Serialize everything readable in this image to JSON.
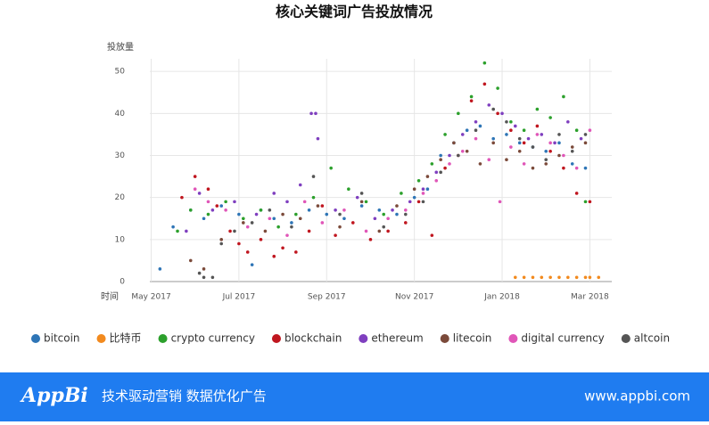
{
  "chart_data": {
    "type": "scatter",
    "title": "核心关键词广告投放情况",
    "y_label": "投放量",
    "x_label": "时间",
    "xlim": [
      -0.6,
      10.5
    ],
    "xticks": [
      {
        "value": 0,
        "label": "May 2017"
      },
      {
        "value": 2,
        "label": "Jul 2017"
      },
      {
        "value": 4,
        "label": "Sep 2017"
      },
      {
        "value": 6,
        "label": "Nov 2017"
      },
      {
        "value": 8,
        "label": "Jan 2018"
      },
      {
        "value": 10,
        "label": "Mar 2018"
      }
    ],
    "ylim": [
      0,
      53
    ],
    "yticks": [
      0,
      10,
      20,
      30,
      40,
      50
    ],
    "grid": true,
    "legend": "bottom",
    "series": [
      {
        "name": "bitcoin",
        "color": "#2e75b6",
        "x": [
          0.2,
          0.5,
          0.9,
          1.2,
          1.6,
          2.0,
          2.3,
          2.5,
          2.8,
          3.2,
          3.6,
          4.0,
          4.4,
          4.8,
          5.2,
          5.6,
          6.0,
          6.3,
          6.6,
          6.9,
          7.2,
          7.5,
          7.8,
          8.1,
          8.4,
          8.7,
          9.0,
          9.3,
          9.6,
          9.9
        ],
        "values": [
          3,
          13,
          17,
          15,
          18,
          16,
          4,
          17,
          15,
          14,
          17,
          16,
          15,
          18,
          17,
          16,
          20,
          22,
          30,
          33,
          36,
          37,
          34,
          35,
          33,
          32,
          31,
          33,
          28,
          27
        ]
      },
      {
        "name": "比特币",
        "color": "#f28a1e",
        "x": [
          8.3,
          8.5,
          8.7,
          8.9,
          9.1,
          9.3,
          9.5,
          9.7,
          9.9,
          10.0,
          10.2
        ],
        "values": [
          1,
          1,
          1,
          1,
          1,
          1,
          1,
          1,
          1,
          1,
          1
        ]
      },
      {
        "name": "crypto currency",
        "color": "#2ca02c",
        "x": [
          0.6,
          0.9,
          1.3,
          1.7,
          2.1,
          2.5,
          2.9,
          3.3,
          3.7,
          4.1,
          4.5,
          4.9,
          5.3,
          5.7,
          6.1,
          6.4,
          6.7,
          7.0,
          7.3,
          7.6,
          7.9,
          8.2,
          8.5,
          8.8,
          9.1,
          9.4,
          9.7,
          9.9
        ],
        "values": [
          12,
          17,
          16,
          19,
          15,
          17,
          13,
          16,
          20,
          27,
          22,
          19,
          16,
          21,
          24,
          28,
          35,
          40,
          44,
          52,
          46,
          38,
          36,
          41,
          39,
          44,
          36,
          19
        ]
      },
      {
        "name": "blockchain",
        "color": "#c0161f",
        "x": [
          0.7,
          1.0,
          1.3,
          1.5,
          1.8,
          2.0,
          2.2,
          2.5,
          2.8,
          3.0,
          3.3,
          3.6,
          3.9,
          4.2,
          4.6,
          5.0,
          5.4,
          5.8,
          6.1,
          6.4,
          6.7,
          7.0,
          7.3,
          7.6,
          7.9,
          8.2,
          8.5,
          8.8,
          9.1,
          9.4,
          9.7,
          10.0
        ],
        "values": [
          20,
          25,
          22,
          18,
          12,
          9,
          7,
          10,
          6,
          8,
          7,
          12,
          18,
          11,
          14,
          10,
          12,
          14,
          19,
          11,
          27,
          30,
          43,
          47,
          40,
          36,
          33,
          37,
          31,
          27,
          21,
          19
        ]
      },
      {
        "name": "ethereum",
        "color": "#7f3fbf",
        "x": [
          0.8,
          1.1,
          1.4,
          1.9,
          2.4,
          2.8,
          3.1,
          3.4,
          3.65,
          3.75,
          3.8,
          4.2,
          4.7,
          5.1,
          5.5,
          5.9,
          6.2,
          6.5,
          6.8,
          7.1,
          7.4,
          7.7,
          8.0,
          8.3,
          8.6,
          8.9,
          9.2,
          9.5,
          9.8
        ],
        "values": [
          12,
          21,
          17,
          19,
          16,
          21,
          19,
          23,
          40,
          40,
          34,
          17,
          20,
          15,
          17,
          19,
          22,
          26,
          30,
          35,
          38,
          42,
          40,
          37,
          34,
          35,
          33,
          38,
          34
        ]
      },
      {
        "name": "litecoin",
        "color": "#7b4a3a",
        "x": [
          0.9,
          1.2,
          1.6,
          2.1,
          2.6,
          3.0,
          3.4,
          3.8,
          4.3,
          4.8,
          5.2,
          5.6,
          6.0,
          6.3,
          6.6,
          6.9,
          7.2,
          7.5,
          7.8,
          8.1,
          8.4,
          8.7,
          9.0,
          9.3,
          9.6,
          9.9
        ],
        "values": [
          5,
          3,
          10,
          14,
          12,
          16,
          15,
          18,
          13,
          19,
          12,
          18,
          22,
          25,
          29,
          33,
          31,
          28,
          33,
          29,
          31,
          27,
          28,
          30,
          32,
          33
        ]
      },
      {
        "name": "digital currency",
        "color": "#e056b8",
        "x": [
          1.0,
          1.3,
          1.7,
          2.2,
          2.7,
          3.1,
          3.5,
          3.9,
          4.4,
          4.9,
          5.4,
          5.8,
          6.2,
          6.5,
          6.8,
          7.1,
          7.4,
          7.7,
          7.95,
          8.2,
          8.5,
          8.8,
          9.1,
          9.4,
          9.7,
          10.0
        ],
        "values": [
          22,
          19,
          17,
          13,
          15,
          11,
          19,
          14,
          17,
          12,
          15,
          17,
          21,
          24,
          28,
          31,
          34,
          29,
          19,
          32,
          28,
          35,
          33,
          30,
          27,
          36
        ]
      },
      {
        "name": "altcoin",
        "color": "#555555",
        "x": [
          1.1,
          1.2,
          1.4,
          1.6,
          1.9,
          2.3,
          2.7,
          3.2,
          3.7,
          4.3,
          4.8,
          5.3,
          5.8,
          6.2,
          6.6,
          7.0,
          7.4,
          7.8,
          8.1,
          8.4,
          8.7,
          9.0,
          9.3,
          9.6,
          9.9
        ],
        "values": [
          2,
          1,
          1,
          9,
          12,
          14,
          17,
          13,
          25,
          16,
          21,
          13,
          16,
          19,
          26,
          30,
          36,
          41,
          38,
          34,
          32,
          29,
          35,
          31,
          35
        ]
      }
    ]
  },
  "footer": {
    "logo": "AppBi",
    "slogan": "技术驱动营销 数据优化广告",
    "url": "www.appbi.com"
  }
}
